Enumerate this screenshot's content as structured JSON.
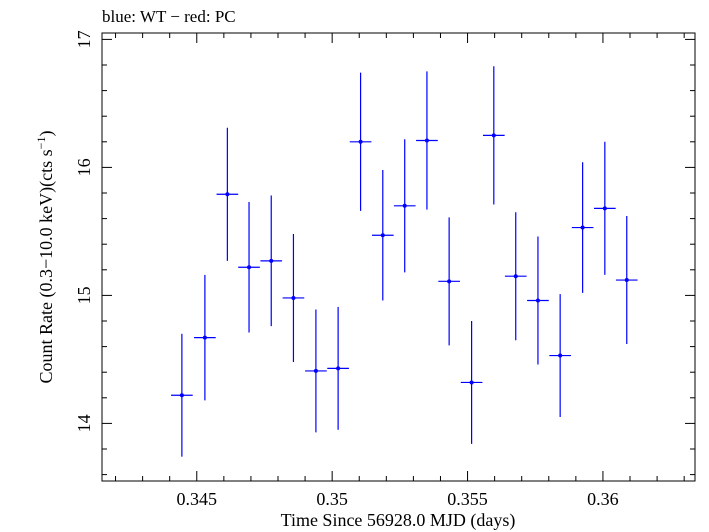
{
  "chart_data": {
    "type": "scatter",
    "title": "blue: WT − red: PC",
    "xlabel": "Time Since 56928.0 MJD (days)",
    "ylabel": "Count Rate (0.3−10.0 keV)(cts s",
    "ylabel_sup": "−1",
    "ylabel_tail": ")",
    "xlim": [
      0.3415,
      0.3634
    ],
    "ylim": [
      13.55,
      17.05
    ],
    "x_ticks": [
      0.345,
      0.35,
      0.355,
      0.36
    ],
    "x_tick_labels": [
      "0.345",
      "0.35",
      "0.355",
      "0.36"
    ],
    "y_ticks": [
      14,
      15,
      16,
      17
    ],
    "y_tick_labels": [
      "14",
      "15",
      "16",
      "17"
    ],
    "grid": false,
    "series": [
      {
        "color": "#0000ff",
        "points": [
          {
            "x": 0.34445,
            "xerr": 0.0004,
            "y": 14.22,
            "yerr": 0.48
          },
          {
            "x": 0.3453,
            "xerr": 0.0004,
            "y": 14.67,
            "yerr": 0.49
          },
          {
            "x": 0.34613,
            "xerr": 0.0004,
            "y": 15.79,
            "yerr": 0.52
          },
          {
            "x": 0.34693,
            "xerr": 0.0004,
            "y": 15.22,
            "yerr": 0.51
          },
          {
            "x": 0.34775,
            "xerr": 0.0004,
            "y": 15.27,
            "yerr": 0.51
          },
          {
            "x": 0.34857,
            "xerr": 0.0004,
            "y": 14.98,
            "yerr": 0.5
          },
          {
            "x": 0.3494,
            "xerr": 0.0004,
            "y": 14.41,
            "yerr": 0.48
          },
          {
            "x": 0.35022,
            "xerr": 0.0004,
            "y": 14.43,
            "yerr": 0.48
          },
          {
            "x": 0.35105,
            "xerr": 0.0004,
            "y": 16.2,
            "yerr": 0.54
          },
          {
            "x": 0.35187,
            "xerr": 0.0004,
            "y": 15.47,
            "yerr": 0.51
          },
          {
            "x": 0.35268,
            "xerr": 0.0004,
            "y": 15.7,
            "yerr": 0.52
          },
          {
            "x": 0.3535,
            "xerr": 0.0004,
            "y": 16.21,
            "yerr": 0.54
          },
          {
            "x": 0.35432,
            "xerr": 0.0004,
            "y": 15.11,
            "yerr": 0.5
          },
          {
            "x": 0.35515,
            "xerr": 0.0004,
            "y": 14.32,
            "yerr": 0.48
          },
          {
            "x": 0.35597,
            "xerr": 0.0004,
            "y": 16.25,
            "yerr": 0.54
          },
          {
            "x": 0.35678,
            "xerr": 0.0004,
            "y": 15.15,
            "yerr": 0.5
          },
          {
            "x": 0.3576,
            "xerr": 0.0004,
            "y": 14.96,
            "yerr": 0.5
          },
          {
            "x": 0.35842,
            "xerr": 0.0004,
            "y": 14.53,
            "yerr": 0.48
          },
          {
            "x": 0.35925,
            "xerr": 0.0004,
            "y": 15.53,
            "yerr": 0.51
          },
          {
            "x": 0.36007,
            "xerr": 0.0004,
            "y": 15.68,
            "yerr": 0.52
          },
          {
            "x": 0.36088,
            "xerr": 0.0004,
            "y": 15.12,
            "yerr": 0.5
          }
        ]
      }
    ]
  }
}
